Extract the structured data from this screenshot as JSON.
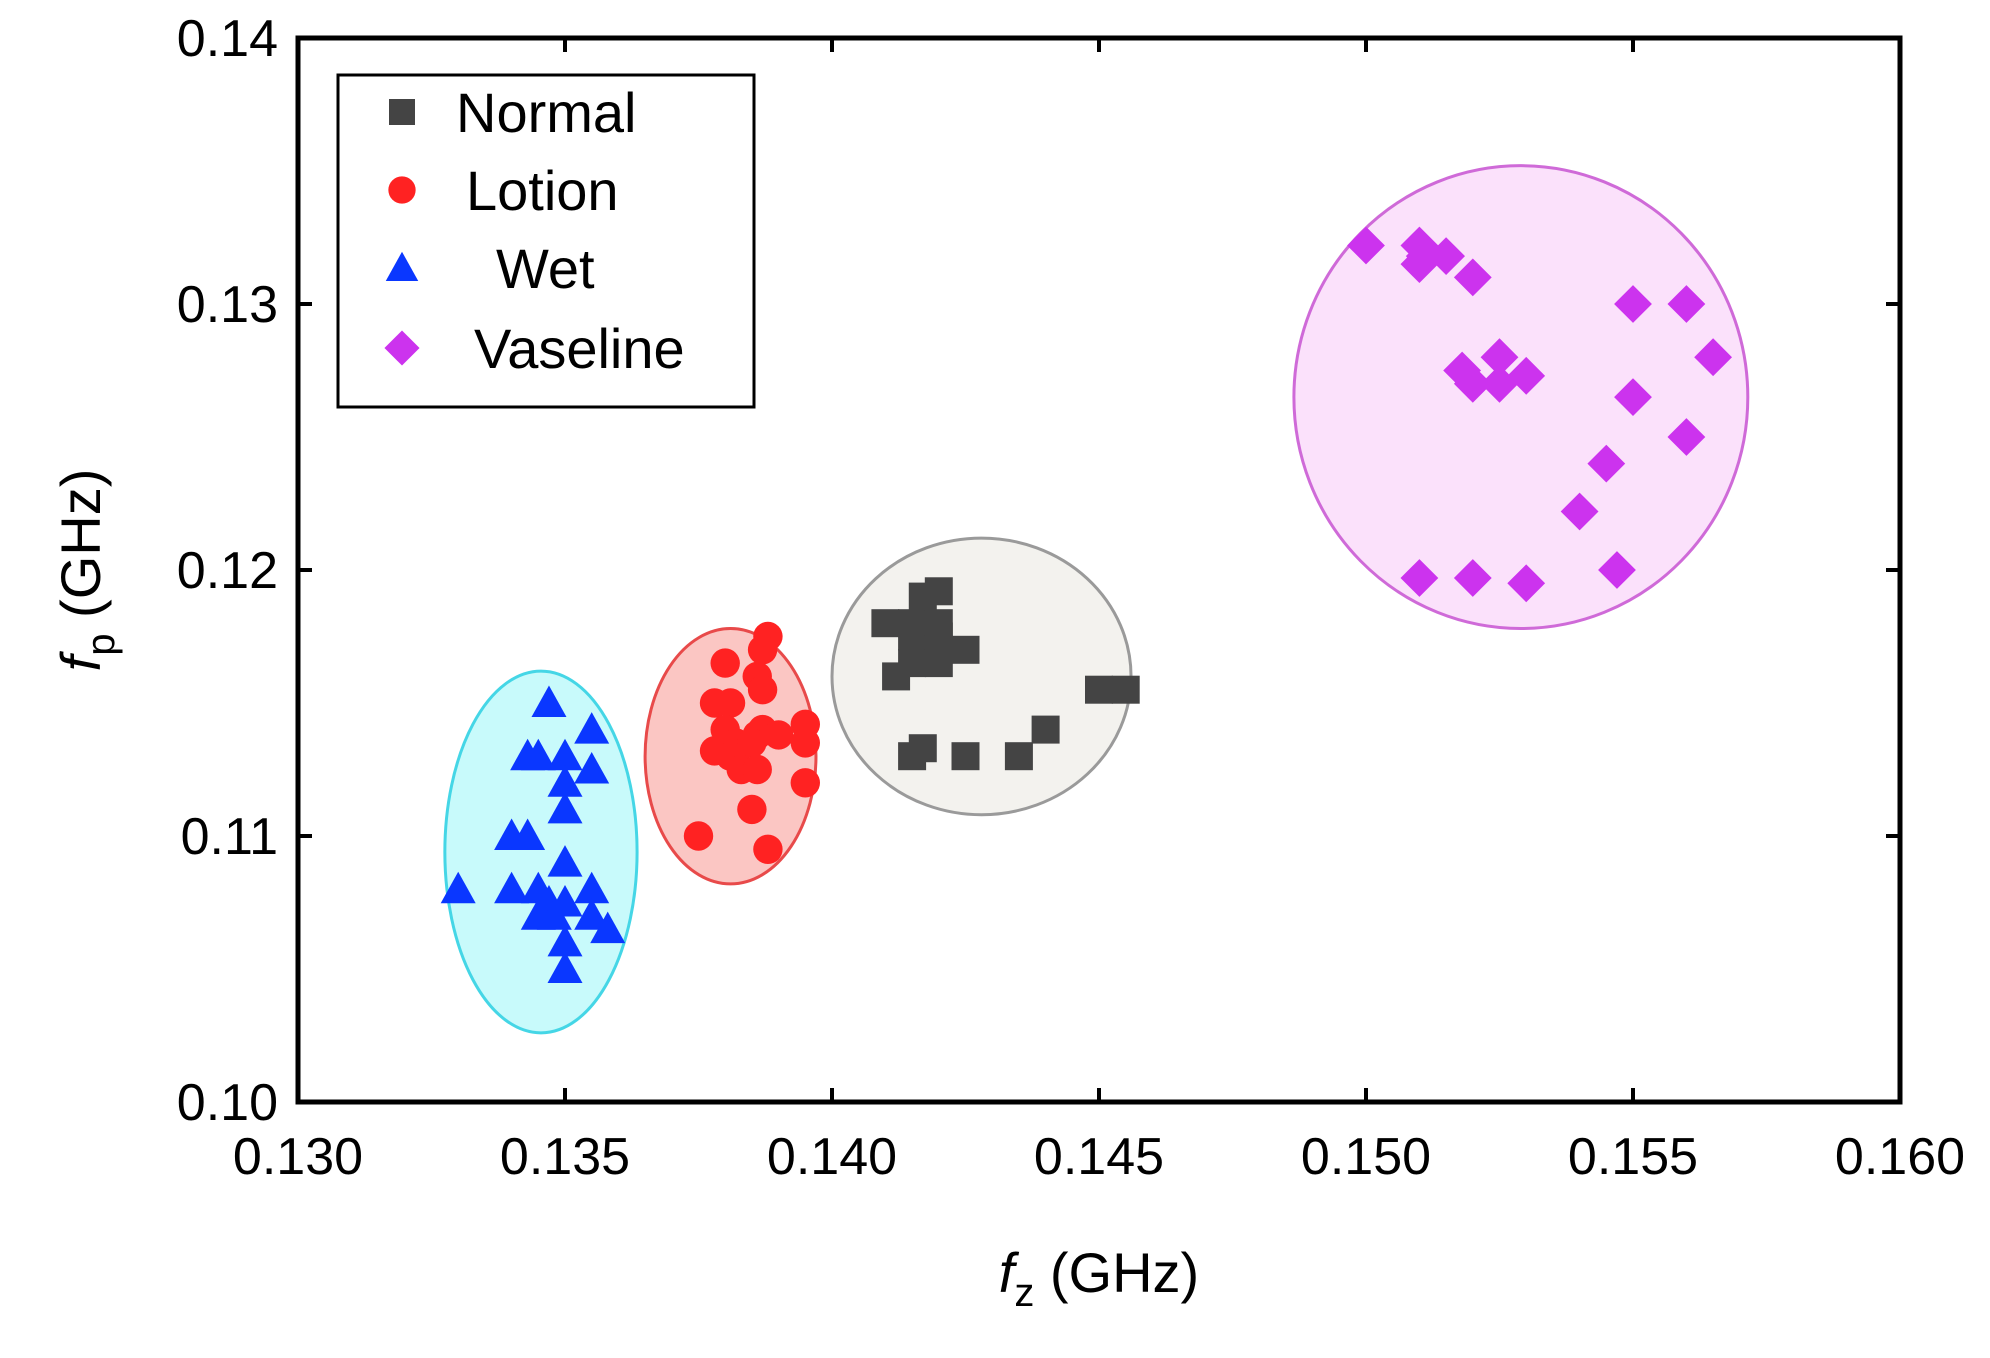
{
  "chart_data": {
    "type": "scatter",
    "title": "",
    "x_axis": {
      "label_italic": "f",
      "label_sub": "z",
      "label_rest": " (GHz)",
      "min": 0.13,
      "max": 0.16,
      "ticks": [
        "0.130",
        "0.135",
        "0.140",
        "0.145",
        "0.150",
        "0.155",
        "0.160"
      ]
    },
    "y_axis": {
      "label_italic": "f",
      "label_sub": "p",
      "label_rest": " (GHz)",
      "min": 0.1,
      "max": 0.14,
      "ticks": [
        "0.10",
        "0.11",
        "0.12",
        "0.13",
        "0.14"
      ]
    },
    "grid": false,
    "legend": {
      "position": "top-left"
    },
    "series": [
      {
        "name": "Normal",
        "marker": "square",
        "color": "#444444",
        "ellipse": {
          "cx": 0.1428,
          "cy": 0.116,
          "rx": 0.0028,
          "ry": 0.0052,
          "fill": "#f3f2ee",
          "stroke": "#9a9a9a"
        },
        "points": [
          [
            0.141,
            0.118
          ],
          [
            0.1415,
            0.118
          ],
          [
            0.142,
            0.118
          ],
          [
            0.1417,
            0.119
          ],
          [
            0.142,
            0.1192
          ],
          [
            0.1415,
            0.1175
          ],
          [
            0.142,
            0.1175
          ],
          [
            0.1425,
            0.117
          ],
          [
            0.142,
            0.117
          ],
          [
            0.1415,
            0.1165
          ],
          [
            0.142,
            0.1165
          ],
          [
            0.1412,
            0.116
          ],
          [
            0.145,
            0.1155
          ],
          [
            0.1455,
            0.1155
          ],
          [
            0.144,
            0.114
          ],
          [
            0.1435,
            0.113
          ],
          [
            0.1425,
            0.113
          ],
          [
            0.1415,
            0.113
          ],
          [
            0.1417,
            0.1133
          ]
        ]
      },
      {
        "name": "Lotion",
        "marker": "circle",
        "color": "#ff2222",
        "ellipse": {
          "cx": 0.1381,
          "cy": 0.113,
          "rx": 0.0016,
          "ry": 0.0048,
          "fill": "#fbc6c3",
          "stroke": "#e84a4a"
        },
        "points": [
          [
            0.1388,
            0.1175
          ],
          [
            0.1387,
            0.117
          ],
          [
            0.138,
            0.1165
          ],
          [
            0.1386,
            0.116
          ],
          [
            0.1387,
            0.1155
          ],
          [
            0.1378,
            0.115
          ],
          [
            0.1381,
            0.115
          ],
          [
            0.138,
            0.114
          ],
          [
            0.1387,
            0.114
          ],
          [
            0.1395,
            0.1142
          ],
          [
            0.1386,
            0.1138
          ],
          [
            0.139,
            0.1138
          ],
          [
            0.1382,
            0.1135
          ],
          [
            0.1395,
            0.1135
          ],
          [
            0.1385,
            0.1135
          ],
          [
            0.1378,
            0.1132
          ],
          [
            0.1381,
            0.113
          ],
          [
            0.1383,
            0.1125
          ],
          [
            0.1386,
            0.1125
          ],
          [
            0.1395,
            0.112
          ],
          [
            0.1385,
            0.111
          ],
          [
            0.1375,
            0.11
          ],
          [
            0.1388,
            0.1095
          ]
        ]
      },
      {
        "name": "Wet",
        "marker": "triangle",
        "color": "#0a37ff",
        "ellipse": {
          "cx": 0.13455,
          "cy": 0.1094,
          "rx": 0.0018,
          "ry": 0.0068,
          "fill": "#c8fafb",
          "stroke": "#45d6e6"
        },
        "points": [
          [
            0.1347,
            0.115
          ],
          [
            0.1355,
            0.114
          ],
          [
            0.1343,
            0.113
          ],
          [
            0.1345,
            0.113
          ],
          [
            0.135,
            0.113
          ],
          [
            0.1355,
            0.1125
          ],
          [
            0.135,
            0.112
          ],
          [
            0.135,
            0.111
          ],
          [
            0.134,
            0.11
          ],
          [
            0.1343,
            0.11
          ],
          [
            0.135,
            0.109
          ],
          [
            0.133,
            0.108
          ],
          [
            0.134,
            0.108
          ],
          [
            0.1345,
            0.108
          ],
          [
            0.1347,
            0.1075
          ],
          [
            0.135,
            0.1075
          ],
          [
            0.1355,
            0.108
          ],
          [
            0.1345,
            0.107
          ],
          [
            0.1348,
            0.107
          ],
          [
            0.1355,
            0.107
          ],
          [
            0.1358,
            0.1065
          ],
          [
            0.135,
            0.106
          ],
          [
            0.135,
            0.105
          ]
        ]
      },
      {
        "name": "Vaseline",
        "marker": "diamond",
        "color": "#cc33ee",
        "ellipse": {
          "cx": 0.1529,
          "cy": 0.1265,
          "rx": 0.00425,
          "ry": 0.0087,
          "fill": "#fbe1fb",
          "stroke": "#cf6ad8"
        },
        "points": [
          [
            0.15,
            0.1322
          ],
          [
            0.151,
            0.1322
          ],
          [
            0.1511,
            0.1318
          ],
          [
            0.1515,
            0.1318
          ],
          [
            0.151,
            0.1315
          ],
          [
            0.152,
            0.131
          ],
          [
            0.155,
            0.13
          ],
          [
            0.156,
            0.13
          ],
          [
            0.1565,
            0.128
          ],
          [
            0.1525,
            0.128
          ],
          [
            0.1518,
            0.1275
          ],
          [
            0.153,
            0.1273
          ],
          [
            0.152,
            0.127
          ],
          [
            0.1525,
            0.127
          ],
          [
            0.155,
            0.1265
          ],
          [
            0.156,
            0.125
          ],
          [
            0.1545,
            0.124
          ],
          [
            0.154,
            0.1222
          ],
          [
            0.1547,
            0.12
          ],
          [
            0.151,
            0.1197
          ],
          [
            0.152,
            0.1197
          ],
          [
            0.153,
            0.1195
          ]
        ]
      }
    ]
  }
}
